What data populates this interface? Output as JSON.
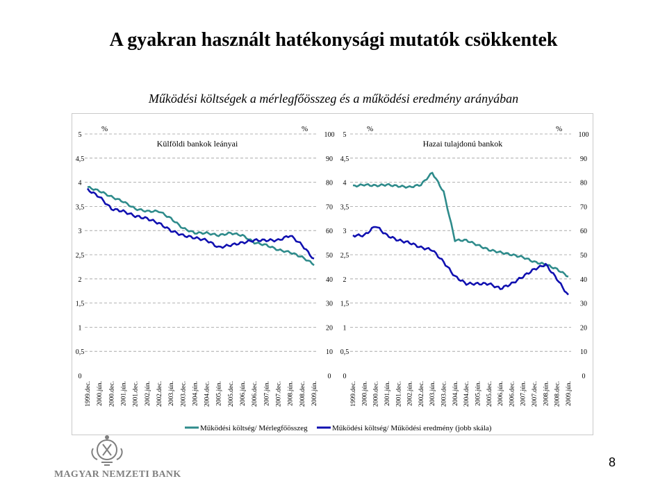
{
  "header": {
    "title": "A gyakran használt hatékonysági mutatók csökkentek",
    "subtitle": "Működési költségek a mérlegfőösszeg és a működési eredmény arányában"
  },
  "footer": {
    "logo_text": "MAGYAR NEMZETI BANK",
    "page_number": "8"
  },
  "colors": {
    "teal": "#2E8B8B",
    "blue": "#1010B0",
    "grid": "#9a9a9a",
    "logo": "#7f7f7f"
  },
  "chart_data": [
    {
      "type": "line",
      "title": "Külföldi bankok leányai",
      "left_unit": "%",
      "right_unit": "%",
      "left_ticks": [
        "0",
        "0,5",
        "1",
        "1,5",
        "2",
        "2,5",
        "3",
        "3,5",
        "4",
        "4,5",
        "5"
      ],
      "right_ticks": [
        "0",
        "10",
        "20",
        "30",
        "40",
        "50",
        "60",
        "70",
        "80",
        "90",
        "100"
      ],
      "ylim_left": [
        0,
        5
      ],
      "ylim_right": [
        0,
        100
      ],
      "categories": [
        "1999.dec.",
        "2000.jún.",
        "2000.dec.",
        "2001.jún.",
        "2001.dec.",
        "2002.jún.",
        "2002.dec.",
        "2003.jún.",
        "2003.dec.",
        "2004.jún.",
        "2004.dec.",
        "2005.jún.",
        "2005.dec.",
        "2006.jún.",
        "2006.dec.",
        "2007.jún.",
        "2007.dec.",
        "2008.jún.",
        "2008.dec.",
        "2009.jún."
      ],
      "grid": "horizontal dashed",
      "series": [
        {
          "name": "Működési költség/ Mérlegfőösszeg",
          "axis": "left",
          "color": "#2E8B8B",
          "values": [
            3.9,
            3.82,
            3.7,
            3.6,
            3.45,
            3.4,
            3.4,
            3.25,
            3.05,
            2.95,
            2.95,
            2.9,
            2.95,
            2.9,
            2.75,
            2.7,
            2.6,
            2.55,
            2.45,
            2.3
          ]
        },
        {
          "name": "Működési költség/ Működési eredmény (jobb skála)",
          "axis": "right",
          "color": "#1010B0",
          "values": [
            77,
            74,
            69,
            68,
            66,
            65,
            63,
            60,
            58,
            57,
            56,
            53,
            54,
            55,
            56,
            56,
            56,
            58,
            54,
            48
          ]
        }
      ]
    },
    {
      "type": "line",
      "title": "Hazai tulajdonú bankok",
      "left_unit": "%",
      "right_unit": "%",
      "left_ticks": [
        "0",
        "0,5",
        "1",
        "1,5",
        "2",
        "2,5",
        "3",
        "3,5",
        "4",
        "4,5",
        "5"
      ],
      "right_ticks": [
        "0",
        "10",
        "20",
        "30",
        "40",
        "50",
        "60",
        "70",
        "80",
        "90",
        "100"
      ],
      "ylim_left": [
        0,
        5
      ],
      "ylim_right": [
        0,
        100
      ],
      "categories": [
        "1999.dec.",
        "2000.jún.",
        "2000.dec.",
        "2001.jún.",
        "2001.dec.",
        "2002.jún.",
        "2002.dec.",
        "2003.jún.",
        "2003.dec.",
        "2004.jún.",
        "2004.dec.",
        "2005.jún.",
        "2005.dec.",
        "2006.jún.",
        "2006.dec.",
        "2007.jún.",
        "2007.dec.",
        "2008.jún.",
        "2008.dec.",
        "2009.jún."
      ],
      "grid": "horizontal dashed",
      "series": [
        {
          "name": "Működési költség/ Mérlegfőösszeg",
          "axis": "left",
          "color": "#2E8B8B",
          "values": [
            3.92,
            3.95,
            3.93,
            3.95,
            3.92,
            3.9,
            3.95,
            4.2,
            3.8,
            2.8,
            2.8,
            2.7,
            2.6,
            2.55,
            2.5,
            2.45,
            2.35,
            2.3,
            2.2,
            2.05
          ]
        },
        {
          "name": "Működési költség/ Működési eredmény (jobb skála)",
          "axis": "right",
          "color": "#1010B0",
          "values": [
            58,
            58,
            62,
            58,
            56,
            55,
            53,
            52,
            47,
            41,
            38,
            38,
            38,
            36,
            38,
            41,
            44,
            46,
            40,
            33
          ]
        }
      ]
    }
  ],
  "legend": {
    "items": [
      "Működési költség/ Mérlegfőösszeg",
      "Működési költség/ Működési eredmény (jobb skála)"
    ]
  }
}
